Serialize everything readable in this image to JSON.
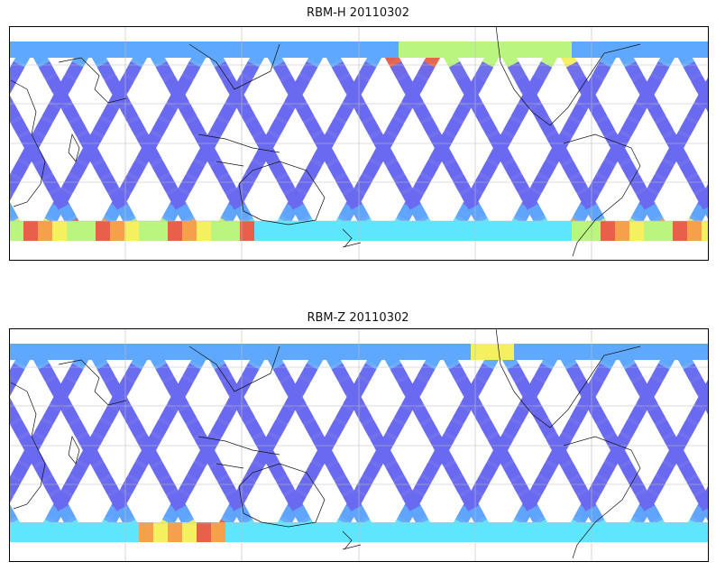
{
  "figure": {
    "colormap": [
      "#6a6af0",
      "#5fa8ff",
      "#5fe6ff",
      "#b9f57f",
      "#f5f060",
      "#f5a04a",
      "#e8604a"
    ],
    "panels": [
      {
        "title": "RBM-H 20110302",
        "intensity": "high"
      },
      {
        "title": "RBM-Z 20110302",
        "intensity": "low"
      }
    ],
    "projection": "cylindrical, centered near 150E",
    "gridlines": true
  }
}
